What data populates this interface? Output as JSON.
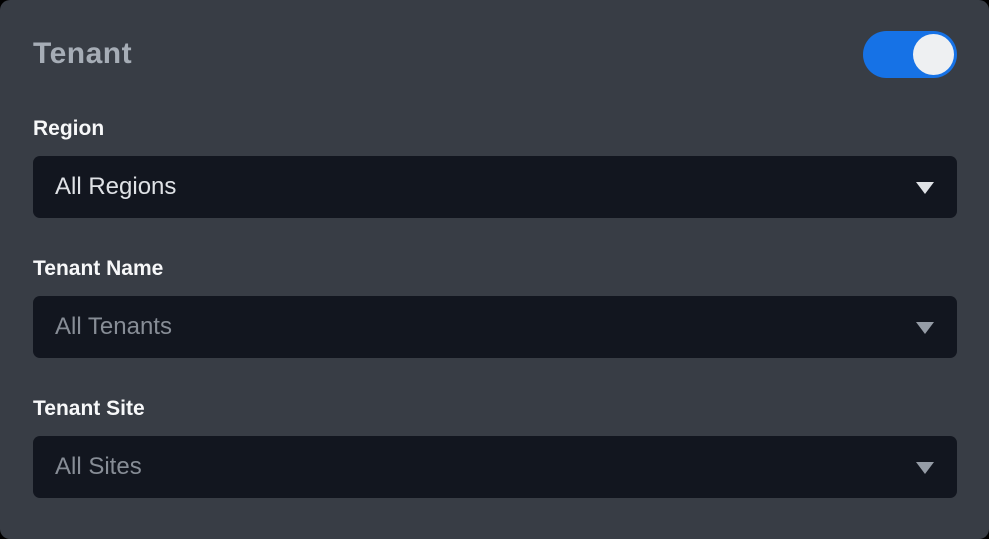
{
  "panel": {
    "title": "Tenant",
    "toggle": {
      "name": "tenant-filter-toggle",
      "state": "on"
    }
  },
  "fields": [
    {
      "label": "Region",
      "value": "All Regions",
      "muted": false
    },
    {
      "label": "Tenant Name",
      "value": "All Tenants",
      "muted": true
    },
    {
      "label": "Tenant Site",
      "value": "All Sites",
      "muted": true
    }
  ],
  "icons": {
    "dropdown": "chevron-down-icon"
  },
  "colors": {
    "panel_bg": "#383d45",
    "select_bg": "#12161f",
    "title": "#a6adb6",
    "label": "#f7f8f9",
    "value_active": "#dfe2e6",
    "value_muted": "#878d96",
    "toggle_accent": "#1672e6",
    "toggle_knob": "#eef0f2"
  }
}
